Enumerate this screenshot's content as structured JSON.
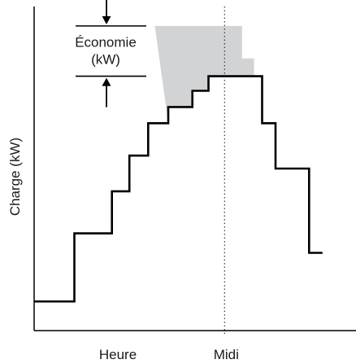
{
  "chart_data": {
    "type": "line",
    "title": "",
    "xlabel": "Heure",
    "ylabel": "Charge (kW)",
    "x_tick_label": "Midi",
    "xlim": [
      0,
      24
    ],
    "ylim": [
      0,
      100
    ],
    "grid": false,
    "noon_x": 14.2,
    "series": [
      {
        "points": [
          [
            0,
            9
          ],
          [
            3.0,
            9
          ],
          [
            3.0,
            30
          ],
          [
            5.8,
            30
          ],
          [
            5.8,
            43
          ],
          [
            7.1,
            43
          ],
          [
            7.1,
            54
          ],
          [
            8.5,
            54
          ],
          [
            8.5,
            64
          ],
          [
            10.0,
            64
          ],
          [
            10.0,
            69
          ],
          [
            11.8,
            69
          ],
          [
            11.8,
            74
          ],
          [
            13.0,
            74
          ],
          [
            13.0,
            78.5
          ],
          [
            17.0,
            78.5
          ],
          [
            17.0,
            64
          ],
          [
            18.0,
            64
          ],
          [
            18.0,
            50
          ],
          [
            20.5,
            50
          ],
          [
            20.5,
            24
          ],
          [
            21.5,
            24
          ]
        ]
      }
    ],
    "shaded_region": {
      "top": [
        [
          9.0,
          94
        ],
        [
          15.5,
          94
        ],
        [
          15.5,
          84
        ],
        [
          16.4,
          84
        ],
        [
          16.4,
          78.5
        ]
      ]
    },
    "annotation": {
      "label_line1": "Économie",
      "label_line2": "(kW)",
      "top_level": 94,
      "bottom_level": 78.5
    },
    "colors": {
      "line": "#000000",
      "shade": "#d2d3d5",
      "text": "#1a1a1a"
    }
  }
}
